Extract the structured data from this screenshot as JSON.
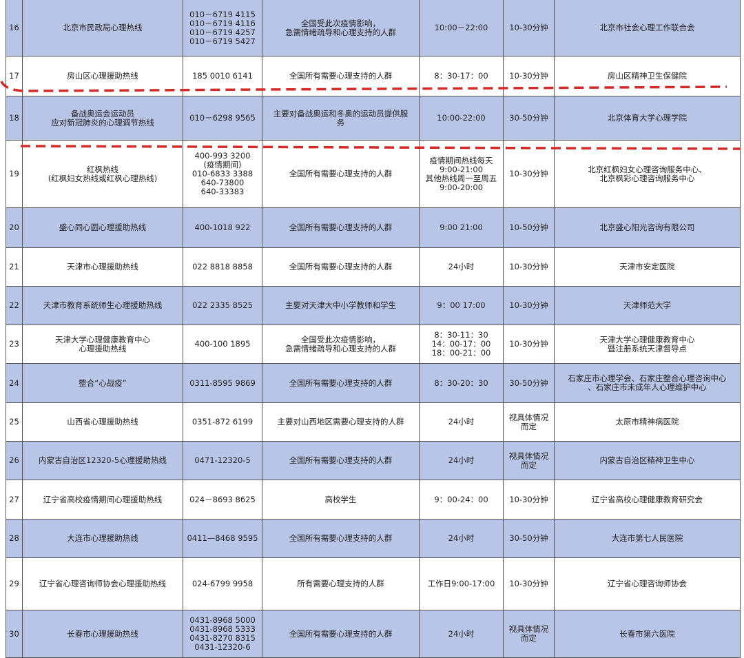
{
  "table": {
    "rows": [
      [
        [
          "16"
        ],
        [
          "北京市民政局心理热线"
        ],
        [
          "010－6719 4115",
          "010－6719 4116",
          "010－6719 4257",
          "010－6719 5427"
        ],
        [
          "全国受此次疫情影响，",
          "急需情绪疏导和心理支持的人群"
        ],
        [
          "10:00－22:00"
        ],
        [
          "10-30分钟"
        ],
        [
          "北京市社会心理工作联合会"
        ]
      ],
      [
        [
          "17"
        ],
        [
          "房山区心理援助热线"
        ],
        [
          "185 0010 6141"
        ],
        [
          "全国所有需要心理支持的人群"
        ],
        [
          "8：30-17：00"
        ],
        [
          "10-30分钟"
        ],
        [
          "房山区精神卫生保健院"
        ]
      ],
      [
        [
          "18"
        ],
        [
          "备战奥运会运动员",
          "应对新冠肺炎的心理调节热线"
        ],
        [
          "010－6298 9565"
        ],
        [
          "主要对备战奥运和冬奥的运动员提供服",
          "务"
        ],
        [
          "10:00-22:00"
        ],
        [
          "30-50分钟"
        ],
        [
          "北京体育大学心理学院"
        ]
      ],
      [
        [
          "19"
        ],
        [
          "红枫热线",
          "(红枫妇女热线或红枫心理热线)"
        ],
        [
          "400-993 3200",
          "(疫情期间)",
          "010-6833 3388",
          "640-73800",
          "640-33383"
        ],
        [
          "全国所有需要心理支持的人群"
        ],
        [
          "疫情期间热线每天",
          "9:00-21:00",
          "其他热线周一至周五",
          "9:00-20:00"
        ],
        [
          "10-30分钟"
        ],
        [
          "北京红枫妇女心理咨询服务中心、",
          "北京枫彩心理咨询服务中心"
        ]
      ],
      [
        [
          "20"
        ],
        [
          "盛心同心圆心理援助热线"
        ],
        [
          "400-1018 922"
        ],
        [
          "全国所有需要心理支持的人群"
        ],
        [
          "9:00 21:00"
        ],
        [
          "10-50分钟"
        ],
        [
          "北京盛心阳光咨询有限公司"
        ]
      ],
      [
        [
          "21"
        ],
        [
          "天津市心理援助热线"
        ],
        [
          "022 8818 8858"
        ],
        [
          "全国所有需要心理支持的人群"
        ],
        [
          "24小时"
        ],
        [
          "10-30分钟"
        ],
        [
          "天津市安定医院"
        ]
      ],
      [
        [
          "22"
        ],
        [
          "天津市教育系统师生心理援助热线"
        ],
        [
          "022 2335 8525"
        ],
        [
          "主要对天津大中小学教师和学生"
        ],
        [
          "9：00 17:00"
        ],
        [
          "10-30分钟"
        ],
        [
          "天津师范大学"
        ]
      ],
      [
        [
          "23"
        ],
        [
          "天津大学心理健康教育中心",
          "心理援助热线"
        ],
        [
          "400-100 1895"
        ],
        [
          "全国受此次疫情影响，",
          "急需情绪疏导和心理支持的人群"
        ],
        [
          "8：30-11：30",
          "14：00-17：00",
          "18：00-21：00"
        ],
        [
          "10-30分钟"
        ],
        [
          "天津大学心理健康教育中心",
          "暨注册系统天津督导点"
        ]
      ],
      [
        [
          "24"
        ],
        [
          "整合“心战疫”"
        ],
        [
          "0311-8595 9869"
        ],
        [
          "全国所有需要心理支持的人群"
        ],
        [
          "8：30-20：30"
        ],
        [
          "30-50分钟"
        ],
        [
          "石家庄市心理学会、石家庄整合心理咨询中心",
          "、石家庄市未成年人心理维护中心"
        ]
      ],
      [
        [
          "25"
        ],
        [
          "山西省心理援助热线"
        ],
        [
          "0351-872 6199"
        ],
        [
          "主要对山西地区需要心理支持的人群"
        ],
        [
          "24小时"
        ],
        [
          "视具体情况",
          "而定"
        ],
        [
          "太原市精神病医院"
        ]
      ],
      [
        [
          "26"
        ],
        [
          "内蒙古自治区12320-5心理援助热线"
        ],
        [
          "0471-12320-5"
        ],
        [
          "全国所有需要心理支持的人群"
        ],
        [
          "24小时"
        ],
        [
          "视具体情况",
          "而定"
        ],
        [
          "内蒙古自治区精神卫生中心"
        ]
      ],
      [
        [
          "27"
        ],
        [
          "辽宁省高校疫情期间心理援助热线"
        ],
        [
          "024－8693 8625"
        ],
        [
          "高校学生"
        ],
        [
          "9：00-24：00"
        ],
        [
          "10-30分钟"
        ],
        [
          "辽宁省高校心理健康教育研究会"
        ]
      ],
      [
        [
          "28"
        ],
        [
          "大连市心理援助热线"
        ],
        [
          "0411—8468 9595"
        ],
        [
          "全国所有需要心理支持的人群"
        ],
        [
          "24小时"
        ],
        [
          "30-50分钟"
        ],
        [
          "大连市第七人民医院"
        ]
      ],
      [
        [
          "29"
        ],
        [
          "辽宁省心理咨询师协会心理援助热线"
        ],
        [
          "024-6799 9958"
        ],
        [
          "所有需要心理支持的人群"
        ],
        [
          "工作日9:00-17:00"
        ],
        [
          "10-30分钟"
        ],
        [
          "辽宁省心理咨询师协会"
        ]
      ],
      [
        [
          "30"
        ],
        [
          "长春市心理援助热线"
        ],
        [
          "0431-8968 5000",
          "0431-8968 5333",
          "0431-8270 8315",
          "0431-12320-6"
        ],
        [
          "全国所有需要心理支持的人群"
        ],
        [
          "24小时"
        ],
        [
          "视具体情况",
          "而定"
        ],
        [
          "长春市第六医院"
        ]
      ]
    ]
  }
}
